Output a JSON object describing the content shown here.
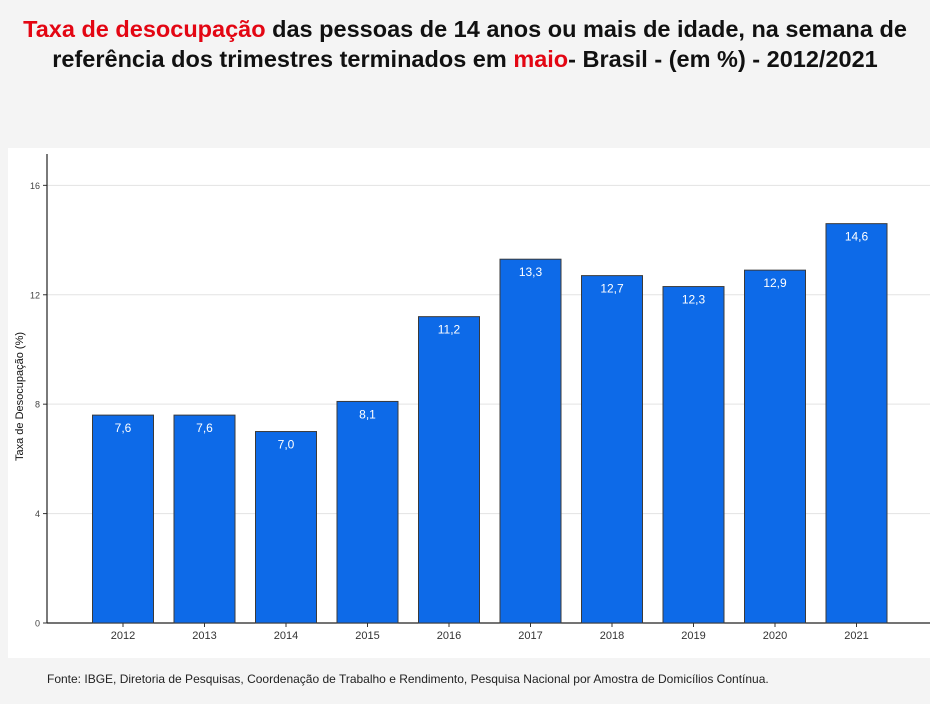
{
  "title": {
    "part1": "Taxa de desocupação",
    "part2": " das pessoas de 14 anos ou mais de idade, na semana de referência dos trimestres terminados em ",
    "part3": "maio",
    "part4": "- Brasil - (em %) - 2012/2021",
    "highlight_color": "#e30613"
  },
  "chart_data": {
    "type": "bar",
    "categories": [
      "2012",
      "2013",
      "2014",
      "2015",
      "2016",
      "2017",
      "2018",
      "2019",
      "2020",
      "2021"
    ],
    "values": [
      7.6,
      7.6,
      7.0,
      8.1,
      11.2,
      13.3,
      12.7,
      12.3,
      12.9,
      14.6
    ],
    "data_labels": [
      "7,6",
      "7,6",
      "7,0",
      "8,1",
      "11,2",
      "13,3",
      "12,7",
      "12,3",
      "12,9",
      "14,6"
    ],
    "ylabel": "Taxa de Desocupação (%)",
    "xlabel": "",
    "yticks": [
      0,
      4,
      8,
      12,
      16
    ],
    "ylim": [
      0,
      17
    ],
    "grid": true,
    "bar_color": "#0d6ae8"
  },
  "footer": "Fonte: IBGE, Diretoria de Pesquisas, Coordenação de Trabalho e Rendimento, Pesquisa Nacional por Amostra de Domicílios Contínua."
}
